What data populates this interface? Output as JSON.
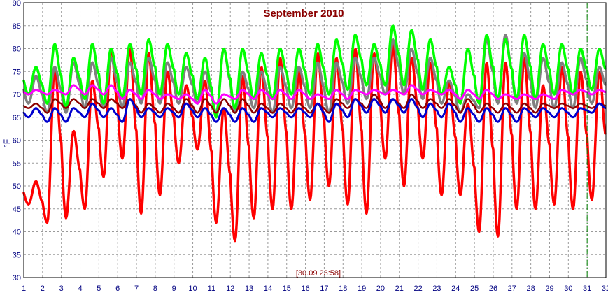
{
  "chart_data": {
    "type": "line",
    "title": "September 2010",
    "xlabel": "",
    "ylabel": "°F",
    "cursor_label": "[30.09 23:58]",
    "xlim": [
      1,
      32
    ],
    "ylim": [
      30,
      90
    ],
    "x_ticks": [
      1,
      2,
      3,
      4,
      5,
      6,
      7,
      8,
      9,
      10,
      11,
      12,
      13,
      14,
      15,
      16,
      17,
      18,
      19,
      20,
      21,
      22,
      23,
      24,
      25,
      26,
      27,
      28,
      29,
      30,
      31,
      32
    ],
    "y_ticks": [
      30,
      35,
      40,
      45,
      50,
      55,
      60,
      65,
      70,
      75,
      80,
      85,
      90
    ],
    "grid": true,
    "marker_x": 31,
    "marker_color": "#008000",
    "days": [
      1,
      2,
      3,
      4,
      5,
      6,
      7,
      8,
      9,
      10,
      11,
      12,
      13,
      14,
      15,
      16,
      17,
      18,
      19,
      20,
      21,
      22,
      23,
      24,
      25,
      26,
      27,
      28,
      29,
      30,
      31
    ],
    "series": [
      {
        "color": "#ff0000",
        "width": 3.5,
        "highs": [
          51,
          76,
          62,
          73,
          80,
          80,
          79,
          75,
          72,
          73,
          67,
          74,
          76,
          78,
          75,
          79,
          78,
          80,
          79,
          81,
          78,
          77,
          73,
          68,
          77,
          77,
          78,
          72,
          76,
          75,
          75
        ],
        "lows": [
          46,
          42,
          43,
          45,
          52,
          56,
          44,
          48,
          55,
          58,
          42,
          38,
          43,
          45,
          45,
          47,
          50,
          46,
          44,
          56,
          50,
          56,
          48,
          48,
          40,
          39,
          45,
          45,
          46,
          45,
          47
        ]
      },
      {
        "color": "#808080",
        "width": 3.5,
        "highs": [
          74,
          76,
          77,
          77,
          78,
          77,
          78,
          77,
          76,
          75,
          80,
          75,
          75,
          76,
          76,
          77,
          77,
          78,
          78,
          82,
          80,
          78,
          73,
          70,
          82,
          83,
          79,
          78,
          77,
          78,
          76
        ],
        "lows": [
          68,
          66,
          66,
          67,
          67,
          67,
          68,
          68,
          68,
          68,
          66,
          66,
          67,
          66,
          67,
          67,
          66,
          68,
          69,
          70,
          70,
          69,
          68,
          66,
          67,
          68,
          68,
          67,
          67,
          67,
          68
        ]
      },
      {
        "color": "#00ff00",
        "width": 3.5,
        "highs": [
          76,
          81,
          78,
          81,
          80,
          81,
          82,
          81,
          79,
          78,
          80,
          80,
          79,
          80,
          80,
          81,
          82,
          83,
          81,
          85,
          84,
          82,
          76,
          80,
          83,
          82,
          83,
          81,
          81,
          80,
          80
        ],
        "lows": [
          70,
          68,
          67,
          69,
          68,
          69,
          70,
          70,
          70,
          69,
          65,
          67,
          69,
          69,
          70,
          70,
          70,
          71,
          72,
          72,
          72,
          71,
          70,
          68,
          68,
          69,
          69,
          69,
          70,
          70,
          71
        ]
      },
      {
        "color": "#ff00ff",
        "width": 3,
        "highs": [
          71,
          71,
          72,
          72,
          72,
          71,
          71,
          70,
          70,
          71,
          70,
          71,
          71,
          71,
          71,
          70,
          71,
          71,
          71,
          71,
          72,
          71,
          71,
          71,
          71,
          70,
          70,
          70,
          71,
          71,
          71
        ],
        "lows": [
          70,
          70,
          70,
          70,
          70,
          69,
          69,
          69,
          69,
          68,
          68,
          69,
          69,
          69,
          69,
          69,
          69,
          69,
          70,
          70,
          70,
          70,
          70,
          69,
          69,
          69,
          69,
          69,
          69,
          70,
          70
        ]
      },
      {
        "color": "#8b0000",
        "width": 2.5,
        "highs": [
          68,
          69,
          69,
          69,
          69,
          69,
          68,
          68,
          69,
          69,
          69,
          69,
          68,
          68,
          68,
          68,
          69,
          69,
          70,
          69,
          70,
          69,
          69,
          69,
          68,
          68,
          68,
          68,
          68,
          68,
          68
        ],
        "lows": [
          67,
          66,
          67,
          67,
          67,
          67,
          66,
          66,
          66,
          66,
          66,
          66,
          66,
          66,
          66,
          66,
          66,
          67,
          67,
          67,
          67,
          67,
          67,
          66,
          66,
          66,
          66,
          66,
          67,
          67,
          67
        ]
      },
      {
        "color": "#0000cd",
        "width": 3,
        "highs": [
          67,
          67,
          67,
          68,
          67,
          69,
          67,
          67,
          68,
          67,
          67,
          67,
          67,
          67,
          67,
          68,
          68,
          69,
          69,
          69,
          69,
          68,
          68,
          67,
          67,
          67,
          67,
          67,
          67,
          67,
          68
        ],
        "lows": [
          65,
          64,
          64,
          65,
          65,
          64,
          65,
          65,
          65,
          65,
          64,
          64,
          64,
          65,
          65,
          65,
          64,
          65,
          66,
          66,
          66,
          65,
          65,
          64,
          64,
          64,
          64,
          65,
          65,
          65,
          66
        ]
      }
    ]
  }
}
